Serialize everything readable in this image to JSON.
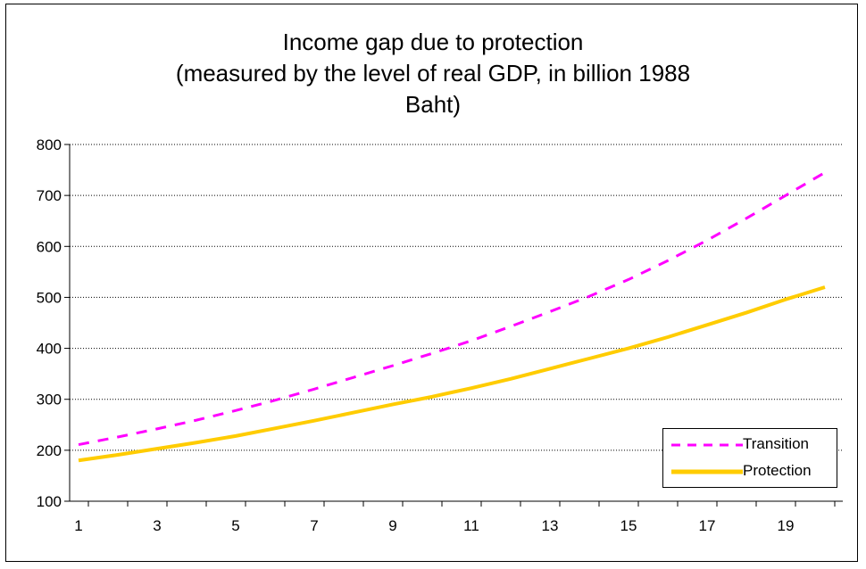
{
  "chart_data": {
    "type": "line",
    "title": "Income gap due to protection\n(measured by the level of real GDP, in billion 1988\nBaht)",
    "xlabel": "",
    "ylabel": "",
    "x": [
      1,
      2,
      3,
      4,
      5,
      6,
      7,
      8,
      9,
      10,
      11,
      12,
      13,
      14,
      15,
      16,
      17,
      18,
      19,
      20
    ],
    "x_tick_labels": [
      "1",
      "3",
      "5",
      "7",
      "9",
      "11",
      "13",
      "15",
      "17",
      "19"
    ],
    "y_tick_labels": [
      "100",
      "200",
      "300",
      "400",
      "500",
      "600",
      "700",
      "800"
    ],
    "ylim": [
      100,
      800
    ],
    "grid": "horizontal dotted",
    "legend_position": "bottom-right",
    "series": [
      {
        "name": "Transition",
        "color": "#ff00ff",
        "style": "dashed",
        "values": [
          211,
          226,
          242,
          259,
          278,
          298,
          320,
          343,
          366,
          390,
          415,
          443,
          472,
          502,
          535,
          572,
          612,
          655,
          700,
          745
        ]
      },
      {
        "name": "Protection",
        "color": "#ffcc00",
        "style": "solid",
        "values": [
          180,
          191,
          203,
          215,
          228,
          243,
          258,
          274,
          290,
          305,
          322,
          340,
          360,
          380,
          400,
          422,
          446,
          470,
          496,
          520
        ]
      }
    ]
  }
}
